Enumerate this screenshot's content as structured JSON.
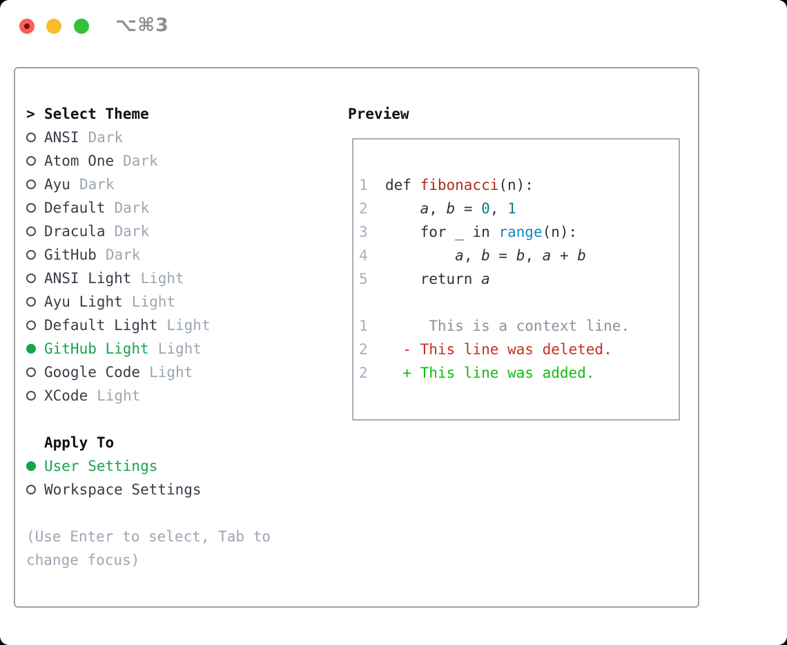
{
  "window": {
    "title": "⌥⌘3"
  },
  "theme_selector": {
    "header": "Select Theme",
    "prompt": ">",
    "items": [
      {
        "name": "ANSI",
        "variant": "Dark",
        "selected": false
      },
      {
        "name": "Atom One",
        "variant": "Dark",
        "selected": false
      },
      {
        "name": "Ayu",
        "variant": "Dark",
        "selected": false
      },
      {
        "name": "Default",
        "variant": "Dark",
        "selected": false
      },
      {
        "name": "Dracula",
        "variant": "Dark",
        "selected": false
      },
      {
        "name": "GitHub",
        "variant": "Dark",
        "selected": false
      },
      {
        "name": "ANSI Light",
        "variant": "Light",
        "selected": false
      },
      {
        "name": "Ayu Light",
        "variant": "Light",
        "selected": false
      },
      {
        "name": "Default Light",
        "variant": "Light",
        "selected": false
      },
      {
        "name": "GitHub Light",
        "variant": "Light",
        "selected": true
      },
      {
        "name": "Google Code",
        "variant": "Light",
        "selected": false
      },
      {
        "name": "XCode",
        "variant": "Light",
        "selected": false
      }
    ]
  },
  "apply_to": {
    "header": "Apply To",
    "items": [
      {
        "name": "User Settings",
        "selected": true
      },
      {
        "name": "Workspace Settings",
        "selected": false
      }
    ]
  },
  "hint": "(Use Enter to select, Tab to change focus)",
  "preview": {
    "header": "Preview",
    "lines": [
      {
        "num": "1",
        "segments": [
          {
            "t": "def ",
            "c": "text"
          },
          {
            "t": "fibonacci",
            "c": "func"
          },
          {
            "t": "(n):",
            "c": "text"
          }
        ]
      },
      {
        "num": "2",
        "segments": [
          {
            "t": "    ",
            "c": "text"
          },
          {
            "t": "a",
            "c": "var"
          },
          {
            "t": ", ",
            "c": "text"
          },
          {
            "t": "b",
            "c": "var"
          },
          {
            "t": " = ",
            "c": "text"
          },
          {
            "t": "0",
            "c": "num"
          },
          {
            "t": ", ",
            "c": "text"
          },
          {
            "t": "1",
            "c": "num"
          }
        ]
      },
      {
        "num": "3",
        "segments": [
          {
            "t": "    for _ in ",
            "c": "text"
          },
          {
            "t": "range",
            "c": "call"
          },
          {
            "t": "(n):",
            "c": "text"
          }
        ]
      },
      {
        "num": "4",
        "segments": [
          {
            "t": "        ",
            "c": "text"
          },
          {
            "t": "a",
            "c": "var"
          },
          {
            "t": ", ",
            "c": "text"
          },
          {
            "t": "b",
            "c": "var"
          },
          {
            "t": " = ",
            "c": "text"
          },
          {
            "t": "b",
            "c": "var"
          },
          {
            "t": ", ",
            "c": "text"
          },
          {
            "t": "a",
            "c": "var"
          },
          {
            "t": " + ",
            "c": "text"
          },
          {
            "t": "b",
            "c": "var"
          }
        ]
      },
      {
        "num": "5",
        "segments": [
          {
            "t": "    return ",
            "c": "text"
          },
          {
            "t": "a",
            "c": "var"
          }
        ]
      },
      {
        "num": "",
        "segments": []
      },
      {
        "num": "1",
        "segments": [
          {
            "t": "     This is a context line.",
            "c": "context"
          }
        ]
      },
      {
        "num": "2",
        "segments": [
          {
            "t": "  - This line was deleted.",
            "c": "deleted"
          }
        ]
      },
      {
        "num": "2",
        "segments": [
          {
            "t": "  + This line was added.",
            "c": "added"
          }
        ]
      }
    ]
  },
  "colors": {
    "selected_green": "#16a44b",
    "muted_gray": "#9ba6b2",
    "item_text": "#363d47",
    "code_text": "#2c323a",
    "function_red": "#b0281e",
    "number_teal": "#0b7e85",
    "call_blue": "#1588c0",
    "context_gray": "#8a929c",
    "diff_deleted_red": "#c6301f",
    "diff_added_green": "#10bb10",
    "line_number_gray": "#a6aeb9",
    "panel_border": "#99a0ab",
    "tl_red": "#f4605a",
    "tl_red_dot": "#7d0d06",
    "tl_yellow": "#f9bb2d",
    "tl_green": "#33c13c"
  }
}
